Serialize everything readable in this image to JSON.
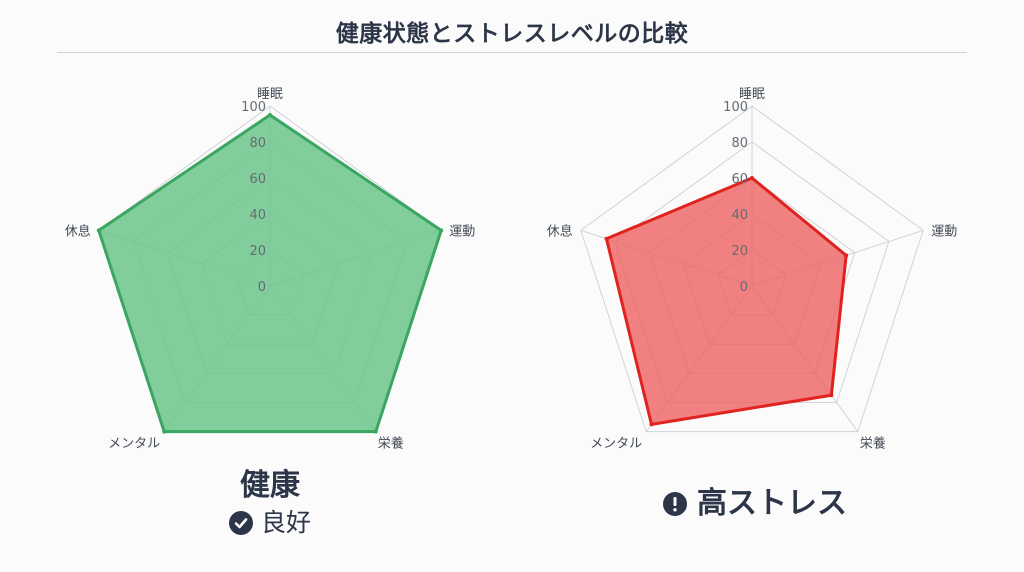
{
  "title": "健康状態とストレスレベルの比較",
  "colors": {
    "healthy_fill": "#6cc48b",
    "healthy_stroke": "#3aa660",
    "stress_fill": "#ef6262",
    "stress_stroke": "#e0231f",
    "grid": "#cfd3d8",
    "text": "#2d3648"
  },
  "chart_data": [
    {
      "type": "radar",
      "axes": [
        "睡眠",
        "運動",
        "栄養",
        "メンタル",
        "休息"
      ],
      "ticks": [
        "0",
        "20",
        "40",
        "60",
        "80",
        "100"
      ],
      "range": [
        0,
        100
      ],
      "series": [
        {
          "values": [
            95,
            100,
            100,
            100,
            100
          ]
        }
      ],
      "caption": "健康",
      "status_label": "良好",
      "status_icon": "check-circle-icon"
    },
    {
      "type": "radar",
      "axes": [
        "睡眠",
        "運動",
        "栄養",
        "メンタル",
        "休息"
      ],
      "ticks": [
        "0",
        "20",
        "40",
        "60",
        "80",
        "100"
      ],
      "range": [
        0,
        100
      ],
      "series": [
        {
          "values": [
            60,
            55,
            75,
            95,
            85
          ]
        }
      ],
      "caption": "高ストレス",
      "status_icon": "exclamation-circle-icon"
    }
  ]
}
